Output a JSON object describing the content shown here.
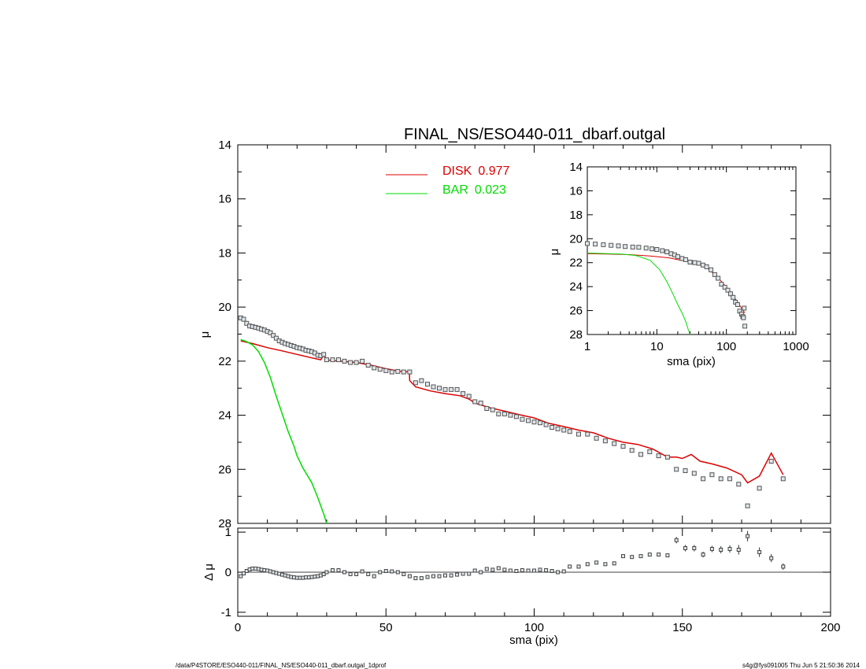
{
  "chart_data": [
    {
      "type": "line",
      "title": "FINAL_NS/ESO440-011_dbarf.outgal",
      "xlabel": "",
      "ylabel": "μ",
      "xlim": [
        0,
        200
      ],
      "ylim": [
        28,
        14
      ],
      "y_inverted": true,
      "yticks": [
        14,
        16,
        18,
        20,
        22,
        24,
        26,
        28
      ],
      "legend": {
        "placement": "top-center",
        "entries": [
          {
            "name": "DISK",
            "value": "0.977",
            "color": "#dd0000"
          },
          {
            "name": "BAR",
            "value": "0.023",
            "color": "#00dd00"
          }
        ]
      },
      "series": [
        {
          "name": "DISK",
          "color": "#dd0000",
          "style": "line",
          "x": [
            1,
            5,
            10,
            15,
            20,
            25,
            28,
            29,
            30,
            32,
            35,
            40,
            45,
            50,
            55,
            57.9,
            58,
            60,
            65,
            70,
            75,
            78,
            80,
            85,
            90,
            95,
            100,
            105,
            110,
            115,
            120,
            125,
            130,
            135,
            140,
            145,
            148,
            150,
            153,
            156,
            160,
            165,
            170,
            172,
            176,
            180,
            184
          ],
          "y": [
            21.25,
            21.35,
            21.5,
            21.62,
            21.75,
            21.88,
            21.95,
            21.78,
            21.95,
            21.98,
            22.0,
            22.05,
            22.15,
            22.28,
            22.38,
            22.4,
            22.72,
            22.95,
            23.1,
            23.2,
            23.28,
            23.4,
            23.55,
            23.72,
            23.85,
            23.98,
            24.1,
            24.3,
            24.42,
            24.55,
            24.65,
            24.85,
            25.0,
            25.08,
            25.25,
            25.55,
            25.55,
            25.6,
            25.45,
            25.7,
            25.8,
            25.95,
            26.2,
            26.5,
            26.25,
            25.4,
            26.2
          ]
        },
        {
          "name": "BAR",
          "color": "#00dd00",
          "style": "line",
          "x": [
            1,
            3,
            5,
            7,
            9,
            11,
            13,
            15,
            17,
            19,
            20,
            22,
            25,
            27,
            29,
            30
          ],
          "y": [
            21.2,
            21.28,
            21.4,
            21.65,
            22.05,
            22.6,
            23.3,
            23.95,
            24.6,
            25.15,
            25.5,
            25.95,
            26.5,
            27.05,
            27.65,
            28.0
          ]
        },
        {
          "name": "",
          "color": "#555555",
          "style": "markers",
          "x": [
            1,
            2,
            3,
            4,
            5,
            6,
            7,
            8,
            9,
            10,
            11,
            12,
            13,
            14,
            15,
            16,
            17,
            18,
            19,
            20,
            21,
            22,
            23,
            24,
            25,
            26,
            27,
            28,
            29,
            30,
            32,
            34,
            36,
            38,
            40,
            42,
            44,
            46,
            48,
            50,
            52,
            54,
            56,
            58,
            60,
            62,
            64,
            66,
            68,
            70,
            72,
            74,
            76,
            78,
            80,
            82,
            84,
            86,
            88,
            90,
            92,
            94,
            96,
            98,
            100,
            102,
            104,
            106,
            108,
            110,
            112,
            115,
            118,
            121,
            124,
            127,
            130,
            133,
            136,
            139,
            142,
            145,
            148,
            151,
            154,
            157,
            160,
            163,
            166,
            169,
            172,
            176,
            180,
            184
          ],
          "y": [
            20.4,
            20.45,
            20.6,
            20.7,
            20.72,
            20.75,
            20.78,
            20.82,
            20.85,
            20.9,
            20.95,
            21.05,
            21.15,
            21.25,
            21.3,
            21.35,
            21.38,
            21.42,
            21.45,
            21.5,
            21.52,
            21.55,
            21.6,
            21.62,
            21.65,
            21.7,
            21.78,
            21.8,
            21.75,
            21.95,
            21.95,
            21.95,
            22.0,
            22.05,
            22.05,
            22.0,
            22.15,
            22.25,
            22.3,
            22.35,
            22.4,
            22.38,
            22.4,
            22.4,
            22.8,
            22.72,
            22.85,
            22.95,
            23.0,
            23.05,
            23.05,
            23.05,
            23.2,
            23.3,
            23.5,
            23.55,
            23.75,
            23.8,
            23.95,
            23.95,
            24.0,
            24.05,
            24.15,
            24.2,
            24.25,
            24.28,
            24.35,
            24.45,
            24.5,
            24.55,
            24.6,
            24.7,
            24.7,
            24.85,
            24.95,
            25.05,
            25.15,
            25.3,
            25.45,
            25.35,
            25.5,
            25.55,
            26.0,
            26.05,
            26.15,
            26.35,
            26.2,
            26.35,
            26.35,
            26.55,
            27.35,
            26.7,
            25.7,
            26.35
          ]
        }
      ]
    },
    {
      "type": "scatter",
      "title": "",
      "xlabel": "sma (pix)",
      "ylabel": "Δ μ",
      "xlim": [
        0,
        200
      ],
      "ylim": [
        -1.1,
        1.1
      ],
      "xticks": [
        0,
        50,
        100,
        150,
        200
      ],
      "yticks": [
        -1,
        0,
        1
      ],
      "series": [
        {
          "name": "",
          "style": "markers",
          "x": [
            1,
            2,
            3,
            4,
            5,
            6,
            7,
            8,
            9,
            10,
            11,
            12,
            13,
            14,
            15,
            16,
            17,
            18,
            19,
            20,
            21,
            22,
            23,
            24,
            25,
            26,
            27,
            28,
            29,
            30,
            32,
            34,
            36,
            38,
            40,
            42,
            44,
            46,
            48,
            50,
            52,
            54,
            56,
            58,
            60,
            62,
            64,
            66,
            68,
            70,
            72,
            74,
            76,
            78,
            80,
            82,
            84,
            86,
            88,
            90,
            92,
            94,
            96,
            98,
            100,
            102,
            104,
            106,
            108,
            110,
            112,
            115,
            118,
            121,
            124,
            127,
            130,
            133,
            136,
            139,
            142,
            145,
            148,
            151,
            154,
            157,
            160,
            163,
            166,
            169,
            172,
            176,
            180,
            184
          ],
          "y": [
            -0.1,
            -0.03,
            0.03,
            0.07,
            0.09,
            0.09,
            0.08,
            0.06,
            0.05,
            0.04,
            0.02,
            0.0,
            -0.02,
            -0.04,
            -0.06,
            -0.08,
            -0.1,
            -0.12,
            -0.13,
            -0.14,
            -0.14,
            -0.14,
            -0.13,
            -0.13,
            -0.12,
            -0.11,
            -0.1,
            -0.08,
            -0.05,
            0.0,
            0.05,
            0.05,
            0.0,
            -0.05,
            -0.05,
            0.02,
            -0.05,
            -0.1,
            0.0,
            0.03,
            0.02,
            0.0,
            -0.05,
            -0.1,
            -0.15,
            -0.15,
            -0.12,
            -0.1,
            -0.1,
            -0.08,
            -0.08,
            -0.06,
            -0.04,
            -0.04,
            0.04,
            0.0,
            0.08,
            0.06,
            0.1,
            0.06,
            0.04,
            0.03,
            0.05,
            0.04,
            0.04,
            0.06,
            0.05,
            0.03,
            0.0,
            0.02,
            0.14,
            0.14,
            0.2,
            0.24,
            0.2,
            0.22,
            0.4,
            0.38,
            0.4,
            0.44,
            0.44,
            0.42,
            0.8,
            0.6,
            0.6,
            0.44,
            0.58,
            0.56,
            0.58,
            0.56,
            0.9,
            0.5,
            0.35,
            0.14
          ],
          "err": [
            0,
            0,
            0,
            0,
            0,
            0,
            0,
            0,
            0,
            0,
            0,
            0,
            0,
            0,
            0,
            0,
            0,
            0,
            0,
            0,
            0,
            0,
            0,
            0,
            0,
            0,
            0,
            0,
            0,
            0,
            0,
            0,
            0,
            0,
            0,
            0,
            0,
            0,
            0,
            0,
            0,
            0,
            0,
            0,
            0,
            0,
            0,
            0,
            0,
            0,
            0,
            0,
            0,
            0,
            0,
            0,
            0,
            0,
            0,
            0,
            0,
            0,
            0,
            0,
            0,
            0,
            0,
            0,
            0,
            0,
            0,
            0,
            0,
            0,
            0,
            0,
            0,
            0,
            0,
            0,
            0,
            0,
            0.08,
            0.08,
            0.08,
            0.07,
            0.08,
            0.09,
            0.09,
            0.12,
            0.13,
            0.12,
            0.1,
            0.08
          ]
        }
      ]
    },
    {
      "type": "line",
      "title": "",
      "xlabel": "sma (pix)",
      "ylabel": "μ",
      "x_scale": "log",
      "xlim": [
        1,
        1000
      ],
      "ylim": [
        28,
        14
      ],
      "y_inverted": true,
      "xticks": [
        1,
        10,
        100,
        1000
      ],
      "yticks": [
        14,
        16,
        18,
        20,
        22,
        24,
        26,
        28
      ],
      "placement": "inset top-right",
      "series": [
        {
          "name": "",
          "color": "#dd0000",
          "style": "line",
          "x": [
            1,
            2,
            4,
            8,
            15,
            20,
            30,
            50,
            80,
            120,
            184
          ],
          "y": [
            21.25,
            21.28,
            21.33,
            21.45,
            21.6,
            21.75,
            21.95,
            22.3,
            23.4,
            24.6,
            26.2
          ]
        },
        {
          "name": "",
          "color": "#00dd00",
          "style": "line",
          "x": [
            1,
            3,
            5,
            8,
            11,
            14,
            17,
            20,
            23,
            26,
            28,
            30
          ],
          "y": [
            21.2,
            21.28,
            21.4,
            21.8,
            22.6,
            23.6,
            24.6,
            25.5,
            26.2,
            26.9,
            27.5,
            28.0
          ]
        },
        {
          "name": "",
          "color": "#555555",
          "style": "markers",
          "x": [
            1,
            1.3,
            1.7,
            2.2,
            2.8,
            3.5,
            4.5,
            5.5,
            7,
            8.5,
            10,
            12,
            14,
            16,
            18,
            20,
            23,
            26,
            30,
            35,
            40,
            46,
            52,
            60,
            68,
            76,
            85,
            95,
            105,
            115,
            125,
            135,
            145,
            155,
            165,
            172,
            176,
            180,
            184
          ],
          "y": [
            20.4,
            20.45,
            20.5,
            20.55,
            20.6,
            20.65,
            20.7,
            20.72,
            20.78,
            20.85,
            20.9,
            21.0,
            21.1,
            21.25,
            21.35,
            21.5,
            21.65,
            21.75,
            21.95,
            22.0,
            22.05,
            22.2,
            22.35,
            22.6,
            23.0,
            23.3,
            23.8,
            24.05,
            24.3,
            24.6,
            24.9,
            25.3,
            25.5,
            26.05,
            26.3,
            26.5,
            26.6,
            25.8,
            27.3
          ]
        }
      ]
    }
  ],
  "footer": {
    "left": "/data/P4STORE/ESO440-011/FINAL_NS/ESO440-011_dbarf.outgal_1dprof",
    "right": "s4g@fys091005  Thu Jun  5 21:50:36 2014"
  }
}
